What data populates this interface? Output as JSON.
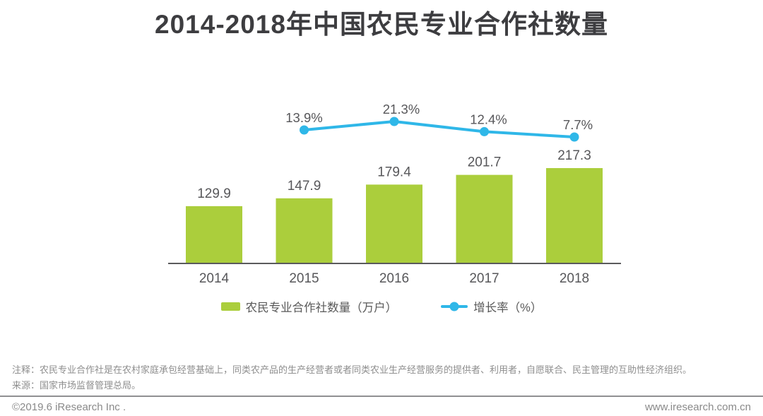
{
  "header": {
    "title": "2014-2018年中国农民专业合作社数量"
  },
  "chart_data": {
    "type": "bar",
    "title": "2014-2018年中国农民专业合作社数量",
    "categories": [
      "2014",
      "2015",
      "2016",
      "2017",
      "2018"
    ],
    "series": [
      {
        "name": "农民专业合作社数量（万户）",
        "type": "bar",
        "values": [
          129.9,
          147.9,
          179.4,
          201.7,
          217.3
        ],
        "labels": [
          "129.9",
          "147.9",
          "179.4",
          "201.7",
          "217.3"
        ],
        "color": "#abce3c"
      },
      {
        "name": "增长率（%）",
        "type": "line",
        "values": [
          null,
          13.9,
          21.3,
          12.4,
          7.7
        ],
        "labels": [
          "13.9%",
          "21.3%",
          "12.4%",
          "7.7%"
        ],
        "color": "#2fb7e8"
      }
    ],
    "xlabel": "",
    "ylabel": "",
    "ylim": [
      0,
      260
    ],
    "secondary_ylim_percent": [
      0,
      140
    ],
    "legend_position": "bottom",
    "grid": false,
    "axis_color": "#5a5a5c",
    "label_color": "#57575a"
  },
  "footer": {
    "note": "注释：农民专业合作社是在农村家庭承包经营基础上，同类农产品的生产经营者或者同类农业生产经营服务的提供者、利用者，自愿联合、民主管理的互助性经济组织。",
    "source": "来源：国家市场监督管理总局。",
    "copyright": "©2019.6 iResearch Inc .",
    "website": "www.iresearch.com.cn"
  }
}
